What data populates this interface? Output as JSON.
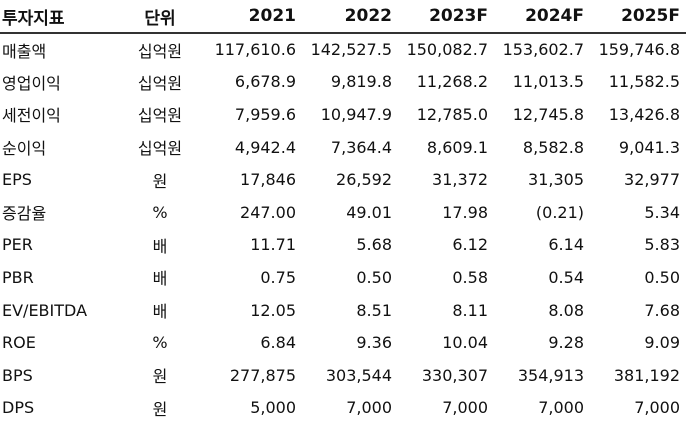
{
  "table": {
    "header": {
      "item": "투자지표",
      "unit": "단위",
      "years": [
        "2021",
        "2022",
        "2023F",
        "2024F",
        "2025F"
      ]
    },
    "rows": [
      {
        "item": "매출액",
        "unit": "십억원",
        "values": [
          "117,610.6",
          "142,527.5",
          "150,082.7",
          "153,602.7",
          "159,746.8"
        ]
      },
      {
        "item": "영업이익",
        "unit": "십억원",
        "values": [
          "6,678.9",
          "9,819.8",
          "11,268.2",
          "11,013.5",
          "11,582.5"
        ]
      },
      {
        "item": "세전이익",
        "unit": "십억원",
        "values": [
          "7,959.6",
          "10,947.9",
          "12,785.0",
          "12,745.8",
          "13,426.8"
        ]
      },
      {
        "item": "순이익",
        "unit": "십억원",
        "values": [
          "4,942.4",
          "7,364.4",
          "8,609.1",
          "8,582.8",
          "9,041.3"
        ]
      },
      {
        "item": "EPS",
        "unit": "원",
        "values": [
          "17,846",
          "26,592",
          "31,372",
          "31,305",
          "32,977"
        ]
      },
      {
        "item": "증감율",
        "unit": "%",
        "values": [
          "247.00",
          "49.01",
          "17.98",
          "(0.21)",
          "5.34"
        ]
      },
      {
        "item": "PER",
        "unit": "배",
        "values": [
          "11.71",
          "5.68",
          "6.12",
          "6.14",
          "5.83"
        ]
      },
      {
        "item": "PBR",
        "unit": "배",
        "values": [
          "0.75",
          "0.50",
          "0.58",
          "0.54",
          "0.50"
        ]
      },
      {
        "item": "EV/EBITDA",
        "unit": "배",
        "values": [
          "12.05",
          "8.51",
          "8.11",
          "8.08",
          "7.68"
        ]
      },
      {
        "item": "ROE",
        "unit": "%",
        "values": [
          "6.84",
          "9.36",
          "10.04",
          "9.28",
          "9.09"
        ]
      },
      {
        "item": "BPS",
        "unit": "원",
        "values": [
          "277,875",
          "303,544",
          "330,307",
          "354,913",
          "381,192"
        ]
      },
      {
        "item": "DPS",
        "unit": "원",
        "values": [
          "5,000",
          "7,000",
          "7,000",
          "7,000",
          "7,000"
        ]
      }
    ]
  }
}
